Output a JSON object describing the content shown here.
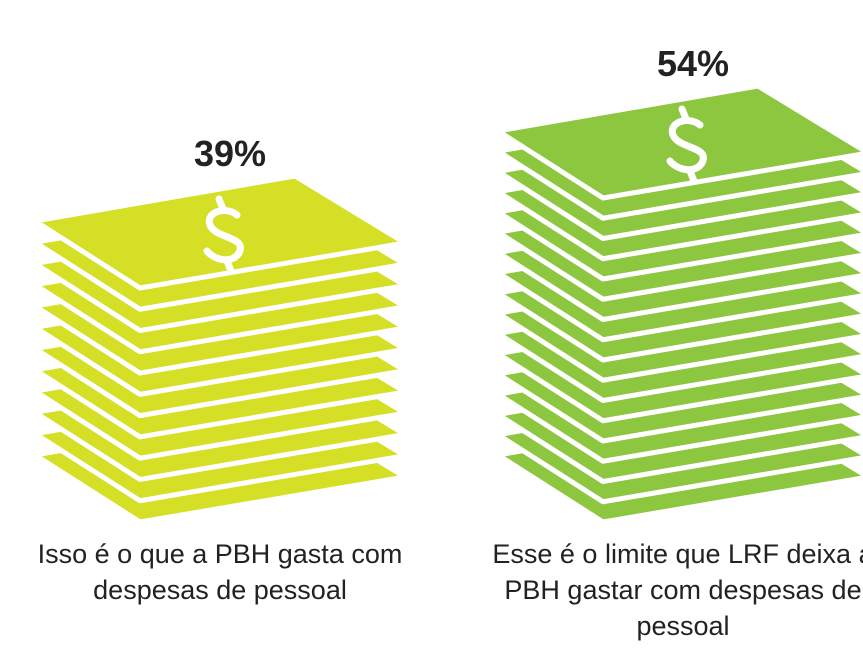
{
  "chart_data": {
    "type": "pictogram",
    "categories": [
      "Isso é o que a PBH gasta com despesas de pessoal",
      "Esse é o limite que LRF deixa a PBH gastar com despesas de pessoal"
    ],
    "values": [
      39,
      54
    ],
    "value_labels": [
      "39%",
      "54%"
    ],
    "colors": [
      "#d5df26",
      "#8dc63f"
    ]
  }
}
